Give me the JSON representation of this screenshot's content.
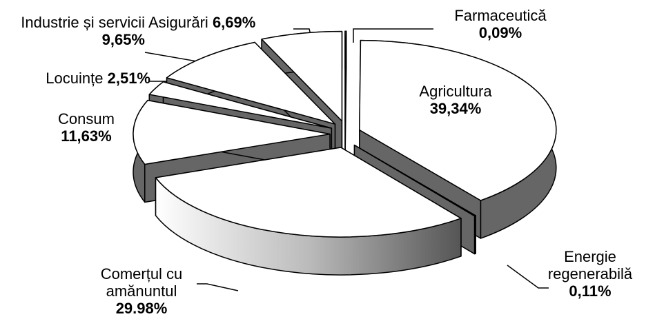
{
  "chart_data": {
    "type": "pie3d",
    "categories": [
      "Farmaceutică",
      "Agricultura",
      "Energie regenerabilă",
      "Comerțul cu amănuntul",
      "Consum",
      "Locuințe",
      "Industrie și servicii",
      "Asigurări"
    ],
    "values": [
      0.09,
      39.34,
      0.11,
      29.98,
      11.63,
      2.51,
      9.65,
      6.69
    ],
    "value_labels": [
      "0,09%",
      "39,34%",
      "0,11%",
      "29.98%",
      "11,63%",
      "2,51%",
      "9,65%",
      "6,69%"
    ],
    "color": "#ffffff",
    "side_color": "#666666",
    "start_angle": -90,
    "exploded": true
  }
}
